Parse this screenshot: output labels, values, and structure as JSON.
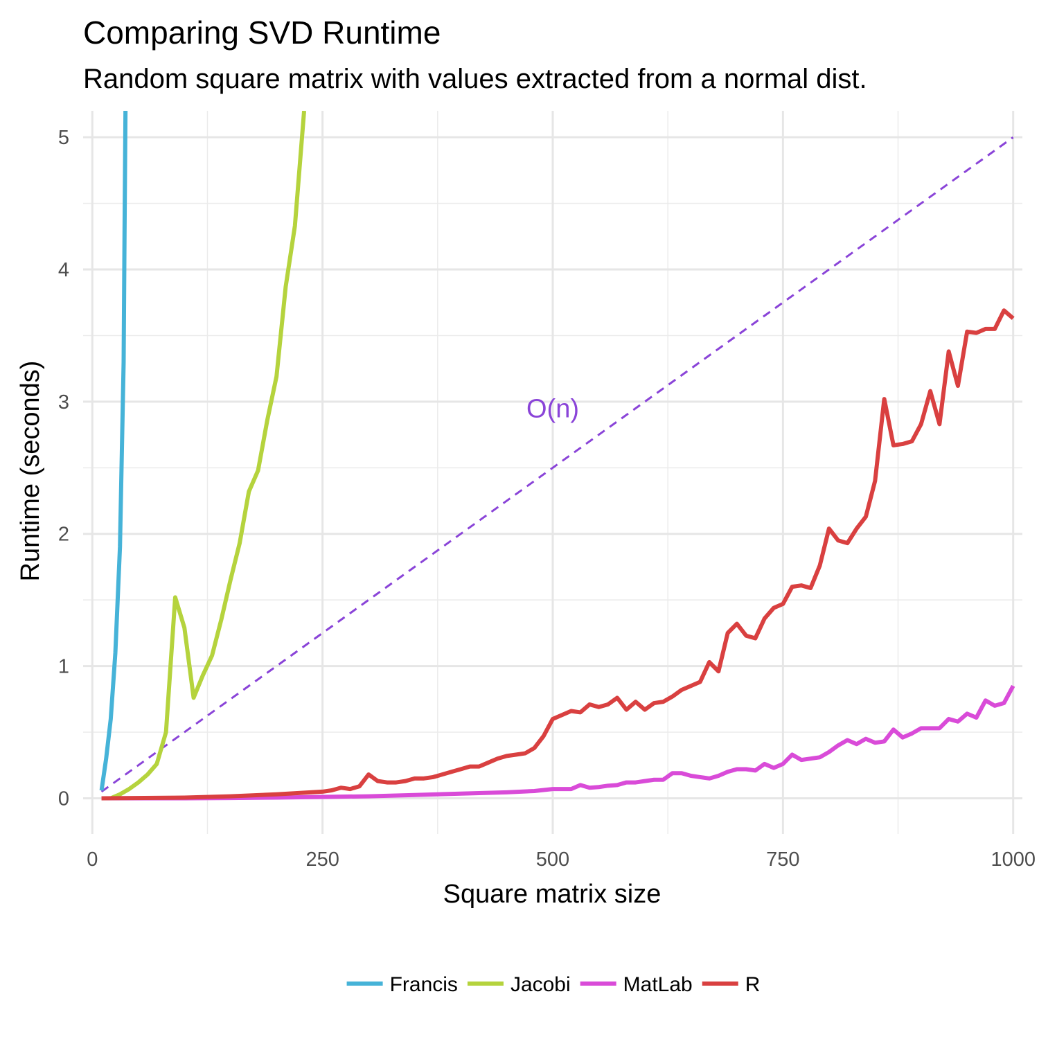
{
  "chart_data": {
    "type": "line",
    "title": "Comparing SVD Runtime",
    "subtitle": "Random square matrix with values extracted from a normal dist.",
    "xlabel": "Square matrix size",
    "ylabel": "Runtime (seconds)",
    "xlim": [
      -10,
      1010
    ],
    "ylim": [
      -0.27,
      5.2
    ],
    "x_ticks": [
      0,
      250,
      500,
      750,
      1000
    ],
    "y_ticks": [
      0,
      1,
      2,
      3,
      4,
      5
    ],
    "grid": true,
    "legend": "bottom",
    "series": [
      {
        "name": "Francis",
        "color": "#46b3d8",
        "x": [
          10,
          15,
          20,
          25,
          30,
          32,
          34,
          35,
          36
        ],
        "y": [
          0.06,
          0.3,
          0.6,
          1.1,
          1.9,
          2.6,
          3.3,
          4.3,
          5.2
        ]
      },
      {
        "name": "Jacobi",
        "color": "#b5d33d",
        "x": [
          20,
          30,
          40,
          50,
          60,
          70,
          80,
          90,
          100,
          110,
          120,
          130,
          140,
          150,
          160,
          170,
          180,
          190,
          200,
          210,
          220,
          230
        ],
        "y": [
          0.0,
          0.03,
          0.07,
          0.12,
          0.18,
          0.26,
          0.5,
          1.52,
          1.29,
          0.76,
          0.93,
          1.08,
          1.35,
          1.65,
          1.93,
          2.32,
          2.48,
          2.86,
          3.19,
          3.87,
          4.33,
          5.2
        ]
      },
      {
        "name": "MatLab",
        "color": "#d94bd8",
        "x": [
          10,
          50,
          100,
          150,
          200,
          250,
          300,
          350,
          400,
          450,
          480,
          500,
          520,
          530,
          540,
          550,
          560,
          570,
          580,
          590,
          600,
          610,
          620,
          630,
          640,
          650,
          660,
          670,
          680,
          690,
          700,
          710,
          720,
          730,
          740,
          750,
          760,
          770,
          780,
          790,
          800,
          810,
          820,
          830,
          840,
          850,
          860,
          870,
          880,
          890,
          900,
          910,
          920,
          930,
          940,
          950,
          960,
          970,
          980,
          990,
          1000
        ],
        "y": [
          0,
          0,
          0,
          0.002,
          0.005,
          0.01,
          0.015,
          0.025,
          0.035,
          0.045,
          0.055,
          0.07,
          0.07,
          0.1,
          0.08,
          0.085,
          0.095,
          0.1,
          0.12,
          0.12,
          0.13,
          0.14,
          0.14,
          0.19,
          0.19,
          0.17,
          0.16,
          0.15,
          0.17,
          0.2,
          0.22,
          0.22,
          0.21,
          0.26,
          0.23,
          0.26,
          0.33,
          0.29,
          0.3,
          0.31,
          0.35,
          0.4,
          0.44,
          0.41,
          0.45,
          0.42,
          0.43,
          0.52,
          0.46,
          0.49,
          0.53,
          0.53,
          0.53,
          0.6,
          0.58,
          0.64,
          0.61,
          0.74,
          0.7,
          0.72,
          0.85
        ]
      },
      {
        "name": "R",
        "color": "#d94040",
        "x": [
          10,
          100,
          150,
          200,
          250,
          260,
          270,
          280,
          290,
          300,
          310,
          320,
          330,
          340,
          350,
          360,
          370,
          380,
          390,
          400,
          410,
          420,
          430,
          440,
          450,
          460,
          470,
          480,
          490,
          500,
          510,
          520,
          530,
          540,
          550,
          560,
          570,
          580,
          590,
          600,
          610,
          620,
          630,
          640,
          650,
          660,
          670,
          680,
          690,
          700,
          710,
          720,
          730,
          740,
          750,
          760,
          770,
          780,
          790,
          800,
          810,
          820,
          830,
          840,
          850,
          860,
          870,
          880,
          890,
          900,
          910,
          920,
          930,
          940,
          950,
          960,
          970,
          980,
          990,
          1000
        ],
        "y": [
          0,
          0.005,
          0.015,
          0.03,
          0.05,
          0.06,
          0.08,
          0.07,
          0.09,
          0.18,
          0.13,
          0.12,
          0.12,
          0.13,
          0.15,
          0.15,
          0.16,
          0.18,
          0.2,
          0.22,
          0.24,
          0.24,
          0.27,
          0.3,
          0.32,
          0.33,
          0.34,
          0.38,
          0.47,
          0.6,
          0.63,
          0.66,
          0.65,
          0.71,
          0.69,
          0.71,
          0.76,
          0.67,
          0.73,
          0.67,
          0.72,
          0.73,
          0.77,
          0.82,
          0.85,
          0.88,
          1.03,
          0.96,
          1.25,
          1.32,
          1.23,
          1.21,
          1.36,
          1.44,
          1.47,
          1.6,
          1.61,
          1.59,
          1.76,
          2.04,
          1.95,
          1.93,
          2.04,
          2.13,
          2.4,
          3.02,
          2.67,
          2.68,
          2.7,
          2.83,
          3.08,
          2.83,
          3.38,
          3.12,
          3.53,
          3.52,
          3.55,
          3.55,
          3.69,
          3.63
        ]
      }
    ],
    "reference_line": {
      "color": "#8a44d8",
      "x": [
        10,
        1000
      ],
      "y": [
        0.05,
        5.0
      ]
    },
    "annotations": [
      {
        "text": "O(n)",
        "x": 500,
        "y": 2.95,
        "color": "#8a44d8"
      }
    ]
  }
}
